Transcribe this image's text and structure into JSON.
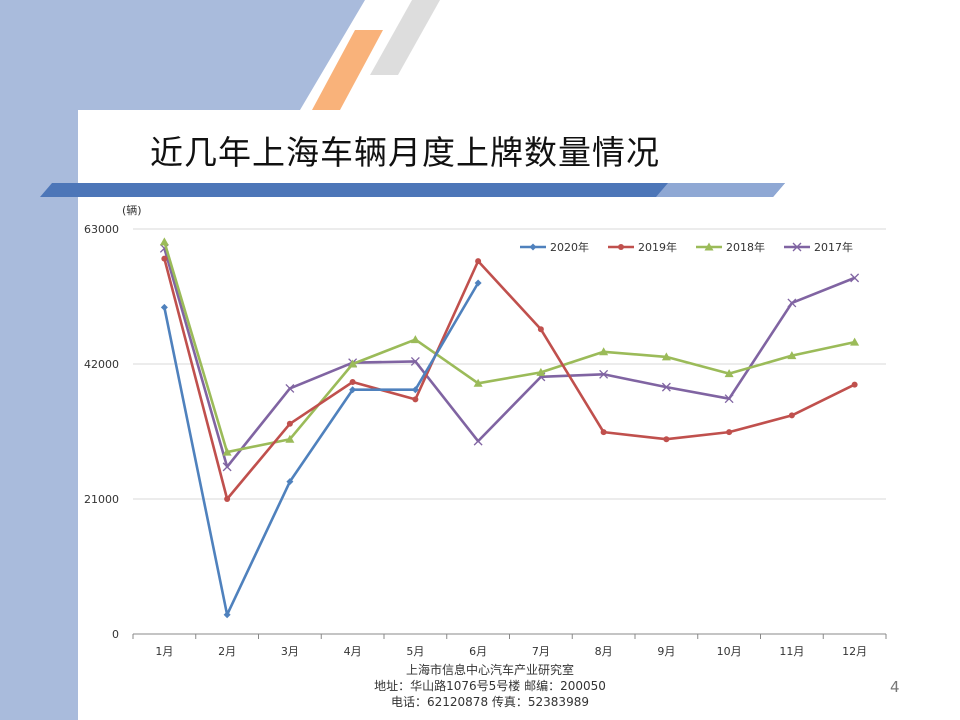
{
  "slide": {
    "title": "近几年上海车辆月度上牌数量情况",
    "page_number": "4",
    "footer": {
      "line1": "上海市信息中心汽车产业研究室",
      "line2": "地址：华山路1076号5号楼    邮编：200050",
      "line3": "电话：62120878  传真：52383989"
    },
    "colors": {
      "sidebar": "#a9bbdc",
      "stripe_orange": "#f9b27a",
      "stripe_gray": "#dddddd",
      "title_bar": "#4d76b8"
    }
  },
  "chart_data": {
    "type": "line",
    "unit_label": "(辆)",
    "categories": [
      "1月",
      "2月",
      "3月",
      "4月",
      "5月",
      "6月",
      "7月",
      "8月",
      "9月",
      "10月",
      "11月",
      "12月"
    ],
    "y_ticks": [
      "0",
      "21000",
      "42000",
      "63000"
    ],
    "ylim": [
      0,
      63000
    ],
    "grid": true,
    "legend_position": "top-right",
    "series": [
      {
        "name": "2020年",
        "color": "#4f81bd",
        "marker": "diamond",
        "values": [
          50800,
          3000,
          23700,
          38000,
          38000,
          54600,
          null,
          null,
          null,
          null,
          null,
          null
        ]
      },
      {
        "name": "2019年",
        "color": "#c0504d",
        "marker": "dot",
        "values": [
          58400,
          21000,
          32700,
          39200,
          36500,
          58000,
          47400,
          31400,
          30300,
          31400,
          34000,
          38800
        ]
      },
      {
        "name": "2018年",
        "color": "#9bbb59",
        "marker": "triangle",
        "values": [
          61000,
          28300,
          30300,
          42000,
          45800,
          39000,
          40700,
          43900,
          43100,
          40500,
          43300,
          45400
        ]
      },
      {
        "name": "2017年",
        "color": "#8064a2",
        "marker": "x",
        "values": [
          60000,
          26000,
          38200,
          42200,
          42400,
          30000,
          40000,
          40400,
          38400,
          36600,
          51500,
          55400
        ]
      }
    ]
  }
}
